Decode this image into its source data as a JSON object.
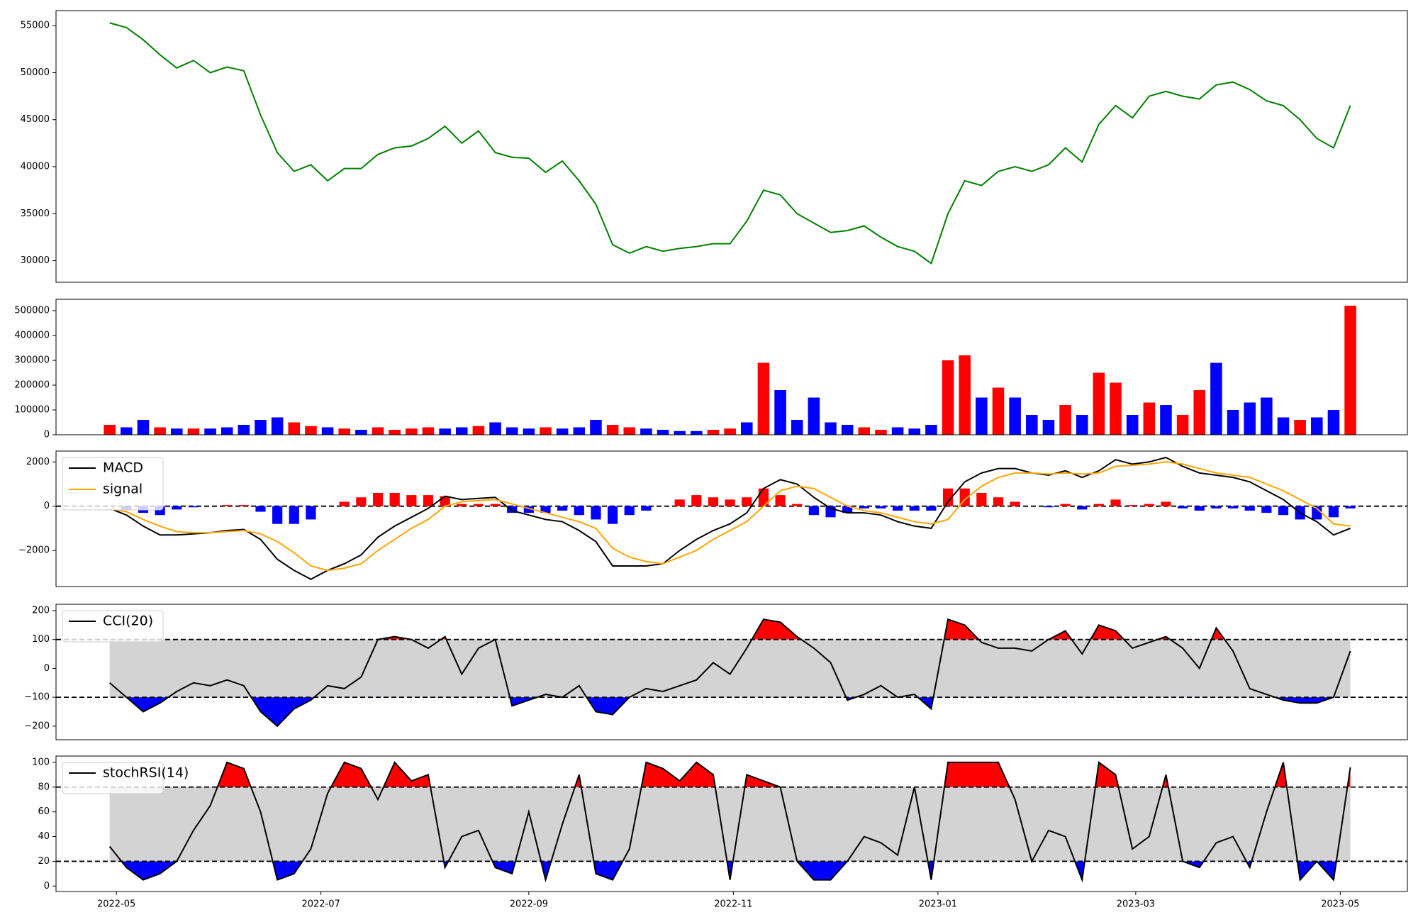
{
  "x": [
    "2022-04-29",
    "2022-05-04",
    "2022-05-09",
    "2022-05-14",
    "2022-05-19",
    "2022-05-24",
    "2022-05-29",
    "2022-06-03",
    "2022-06-08",
    "2022-06-13",
    "2022-06-18",
    "2022-06-23",
    "2022-06-28",
    "2022-07-03",
    "2022-07-08",
    "2022-07-13",
    "2022-07-18",
    "2022-07-23",
    "2022-07-28",
    "2022-08-02",
    "2022-08-07",
    "2022-08-12",
    "2022-08-17",
    "2022-08-22",
    "2022-08-27",
    "2022-09-01",
    "2022-09-06",
    "2022-09-11",
    "2022-09-16",
    "2022-09-21",
    "2022-09-26",
    "2022-10-01",
    "2022-10-06",
    "2022-10-11",
    "2022-10-16",
    "2022-10-21",
    "2022-10-26",
    "2022-10-31",
    "2022-11-05",
    "2022-11-10",
    "2022-11-15",
    "2022-11-20",
    "2022-11-25",
    "2022-11-30",
    "2022-12-05",
    "2022-12-10",
    "2022-12-15",
    "2022-12-20",
    "2022-12-25",
    "2022-12-30",
    "2023-01-04",
    "2023-01-09",
    "2023-01-14",
    "2023-01-19",
    "2023-01-24",
    "2023-01-29",
    "2023-02-03",
    "2023-02-08",
    "2023-02-13",
    "2023-02-18",
    "2023-02-23",
    "2023-02-28",
    "2023-03-05",
    "2023-03-10",
    "2023-03-15",
    "2023-03-20",
    "2023-03-25",
    "2023-03-30",
    "2023-04-04",
    "2023-04-09",
    "2023-04-14",
    "2023-04-19",
    "2023-04-24",
    "2023-04-29",
    "2023-05-04"
  ],
  "xlim": [
    "2022-04-13",
    "2023-05-21"
  ],
  "xticks": [
    {
      "value": "2022-05-01",
      "label": "2022-05"
    },
    {
      "value": "2022-07-01",
      "label": "2022-07"
    },
    {
      "value": "2022-09-01",
      "label": "2022-09"
    },
    {
      "value": "2022-11-01",
      "label": "2022-11"
    },
    {
      "value": "2023-01-01",
      "label": "2023-01"
    },
    {
      "value": "2023-03-01",
      "label": "2023-03"
    },
    {
      "value": "2023-05-01",
      "label": "2023-05"
    }
  ],
  "chart_data": [
    {
      "type": "line",
      "color": "#008000",
      "ylim": [
        27700,
        56600
      ],
      "yticks": [
        30000,
        35000,
        40000,
        45000,
        50000,
        55000
      ],
      "values": [
        55300,
        54800,
        53500,
        51900,
        50500,
        51300,
        50000,
        50600,
        50200,
        45500,
        41500,
        39500,
        40200,
        38500,
        39800,
        39800,
        41300,
        42000,
        42200,
        43000,
        44300,
        42500,
        43800,
        41500,
        41000,
        40900,
        39400,
        40600,
        38500,
        36000,
        31700,
        30800,
        31500,
        31000,
        31300,
        31500,
        31800,
        31800,
        34200,
        37500,
        37000,
        35000,
        34000,
        33000,
        33200,
        33700,
        32500,
        31500,
        31000,
        29700,
        35000,
        38500,
        38000,
        39500,
        40000,
        39500,
        40200,
        42000,
        40500,
        44500,
        46500,
        45200,
        47500,
        48000,
        47500,
        47200,
        48700,
        49000,
        48200,
        47000,
        46500,
        45000,
        43000,
        42000,
        46500
      ]
    },
    {
      "type": "bar",
      "ylim": [
        0,
        546000
      ],
      "yticks": [
        0,
        100000,
        200000,
        300000,
        400000,
        500000
      ],
      "values": [
        40000,
        30000,
        60000,
        30000,
        25000,
        25000,
        25000,
        30000,
        40000,
        60000,
        70000,
        50000,
        35000,
        30000,
        25000,
        20000,
        30000,
        20000,
        25000,
        30000,
        25000,
        30000,
        35000,
        50000,
        30000,
        25000,
        30000,
        25000,
        30000,
        60000,
        40000,
        30000,
        25000,
        20000,
        15000,
        15000,
        20000,
        25000,
        50000,
        290000,
        180000,
        60000,
        150000,
        50000,
        40000,
        30000,
        20000,
        30000,
        25000,
        40000,
        300000,
        320000,
        150000,
        190000,
        150000,
        80000,
        60000,
        120000,
        80000,
        250000,
        210000,
        80000,
        130000,
        120000,
        80000,
        180000,
        290000,
        100000,
        130000,
        150000,
        70000,
        60000,
        70000,
        100000,
        520000
      ],
      "colors": [
        "red",
        "blue",
        "blue",
        "red",
        "blue",
        "red",
        "blue",
        "blue",
        "blue",
        "blue",
        "blue",
        "red",
        "red",
        "blue",
        "red",
        "blue",
        "red",
        "red",
        "red",
        "red",
        "blue",
        "blue",
        "red",
        "blue",
        "blue",
        "blue",
        "red",
        "blue",
        "blue",
        "blue",
        "red",
        "red",
        "blue",
        "blue",
        "blue",
        "blue",
        "red",
        "red",
        "blue",
        "red",
        "blue",
        "blue",
        "blue",
        "blue",
        "blue",
        "red",
        "red",
        "blue",
        "blue",
        "blue",
        "red",
        "red",
        "blue",
        "red",
        "blue",
        "blue",
        "blue",
        "red",
        "blue",
        "red",
        "red",
        "blue",
        "red",
        "blue",
        "red",
        "red",
        "blue",
        "blue",
        "blue",
        "blue",
        "blue",
        "red",
        "blue",
        "blue",
        "red"
      ]
    },
    {
      "type": "line",
      "ylim": [
        -3630,
        2490
      ],
      "yticks": [
        {
          "value": -2000,
          "label": "−2000"
        },
        0,
        2000
      ],
      "hlines": [
        0
      ],
      "legend": "upper left",
      "series": [
        {
          "name": "MACD",
          "color": "#000000",
          "values": [
            -100,
            -400,
            -900,
            -1300,
            -1300,
            -1250,
            -1200,
            -1100,
            -1050,
            -1500,
            -2400,
            -2900,
            -3300,
            -2900,
            -2600,
            -2200,
            -1400,
            -900,
            -500,
            -100,
            450,
            300,
            350,
            400,
            -200,
            -400,
            -600,
            -700,
            -1100,
            -1600,
            -2700,
            -2700,
            -2700,
            -2600,
            -2000,
            -1500,
            -1100,
            -800,
            -300,
            800,
            1200,
            1000,
            400,
            -100,
            -300,
            -300,
            -400,
            -700,
            -900,
            -1000,
            200,
            1100,
            1500,
            1700,
            1700,
            1500,
            1400,
            1600,
            1300,
            1600,
            2100,
            1900,
            2000,
            2200,
            1800,
            1500,
            1400,
            1300,
            1100,
            700,
            300,
            -300,
            -700,
            -1300,
            -1000
          ]
        },
        {
          "name": "signal",
          "color": "#ffa500",
          "values": [
            -100,
            -250,
            -600,
            -900,
            -1150,
            -1200,
            -1200,
            -1150,
            -1100,
            -1250,
            -1600,
            -2100,
            -2700,
            -2900,
            -2800,
            -2600,
            -2000,
            -1500,
            -1000,
            -600,
            0,
            200,
            250,
            300,
            100,
            -100,
            -300,
            -500,
            -700,
            -1000,
            -1900,
            -2300,
            -2500,
            -2600,
            -2300,
            -2000,
            -1500,
            -1100,
            -700,
            0,
            700,
            900,
            800,
            400,
            0,
            -200,
            -300,
            -500,
            -700,
            -800,
            -600,
            300,
            900,
            1300,
            1500,
            1500,
            1450,
            1500,
            1450,
            1500,
            1800,
            1850,
            1900,
            2000,
            1900,
            1700,
            1500,
            1400,
            1300,
            1000,
            700,
            300,
            -100,
            -800,
            -900
          ]
        }
      ],
      "histogram": {
        "positive_color": "red",
        "negative_color": "blue",
        "values": [
          0,
          -150,
          -300,
          -400,
          -150,
          -50,
          0,
          50,
          50,
          -250,
          -800,
          -800,
          -600,
          0,
          200,
          400,
          600,
          600,
          500,
          500,
          450,
          100,
          100,
          100,
          -300,
          -300,
          -300,
          -200,
          -400,
          -600,
          -800,
          -400,
          -200,
          0,
          300,
          500,
          400,
          300,
          400,
          800,
          500,
          100,
          -400,
          -500,
          -300,
          -100,
          -100,
          -200,
          -200,
          -200,
          800,
          800,
          600,
          400,
          200,
          0,
          -50,
          100,
          -150,
          100,
          300,
          50,
          100,
          200,
          -100,
          -200,
          -100,
          -100,
          -200,
          -300,
          -400,
          -600,
          -600,
          -500,
          -100
        ]
      }
    },
    {
      "type": "line",
      "ylim": [
        -247,
        222
      ],
      "yticks": [
        {
          "value": -200,
          "label": "−200"
        },
        {
          "value": -100,
          "label": "−100"
        },
        0,
        100,
        200
      ],
      "legend": "upper left",
      "band": {
        "lower": -100,
        "upper": 100,
        "color": "#d3d3d3",
        "above_color": "red",
        "below_color": "blue"
      },
      "series": [
        {
          "name": "CCI(20)",
          "color": "#000000",
          "values": [
            -50,
            -100,
            -150,
            -120,
            -80,
            -50,
            -60,
            -40,
            -60,
            -150,
            -200,
            -140,
            -110,
            -60,
            -70,
            -30,
            100,
            110,
            100,
            70,
            110,
            -20,
            70,
            100,
            -130,
            -110,
            -90,
            -100,
            -60,
            -150,
            -160,
            -100,
            -70,
            -80,
            -60,
            -40,
            20,
            -20,
            70,
            170,
            160,
            110,
            70,
            20,
            -110,
            -90,
            -60,
            -100,
            -90,
            -140,
            170,
            150,
            90,
            70,
            70,
            60,
            100,
            130,
            50,
            150,
            130,
            70,
            90,
            110,
            70,
            0,
            140,
            60,
            -70,
            -90,
            -110,
            -120,
            -120,
            -100,
            60
          ]
        }
      ]
    },
    {
      "type": "line",
      "ylim": [
        -4.4,
        105.1
      ],
      "yticks": [
        0,
        20,
        40,
        60,
        80,
        100
      ],
      "legend": "upper left",
      "band": {
        "lower": 20,
        "upper": 80,
        "color": "#d3d3d3",
        "above_color": "red",
        "below_color": "blue"
      },
      "series": [
        {
          "name": "stochRSI(14)",
          "color": "#000000",
          "values": [
            32,
            15,
            5,
            10,
            20,
            45,
            65,
            100,
            95,
            60,
            5,
            10,
            30,
            75,
            100,
            95,
            70,
            100,
            85,
            90,
            15,
            40,
            45,
            15,
            10,
            60,
            5,
            50,
            90,
            10,
            5,
            30,
            100,
            95,
            85,
            100,
            90,
            5,
            90,
            85,
            80,
            20,
            5,
            5,
            20,
            40,
            35,
            25,
            80,
            5,
            100,
            100,
            100,
            100,
            70,
            20,
            45,
            40,
            5,
            100,
            90,
            30,
            40,
            90,
            20,
            15,
            35,
            40,
            15,
            60,
            100,
            5,
            20,
            5,
            96
          ]
        }
      ]
    }
  ]
}
